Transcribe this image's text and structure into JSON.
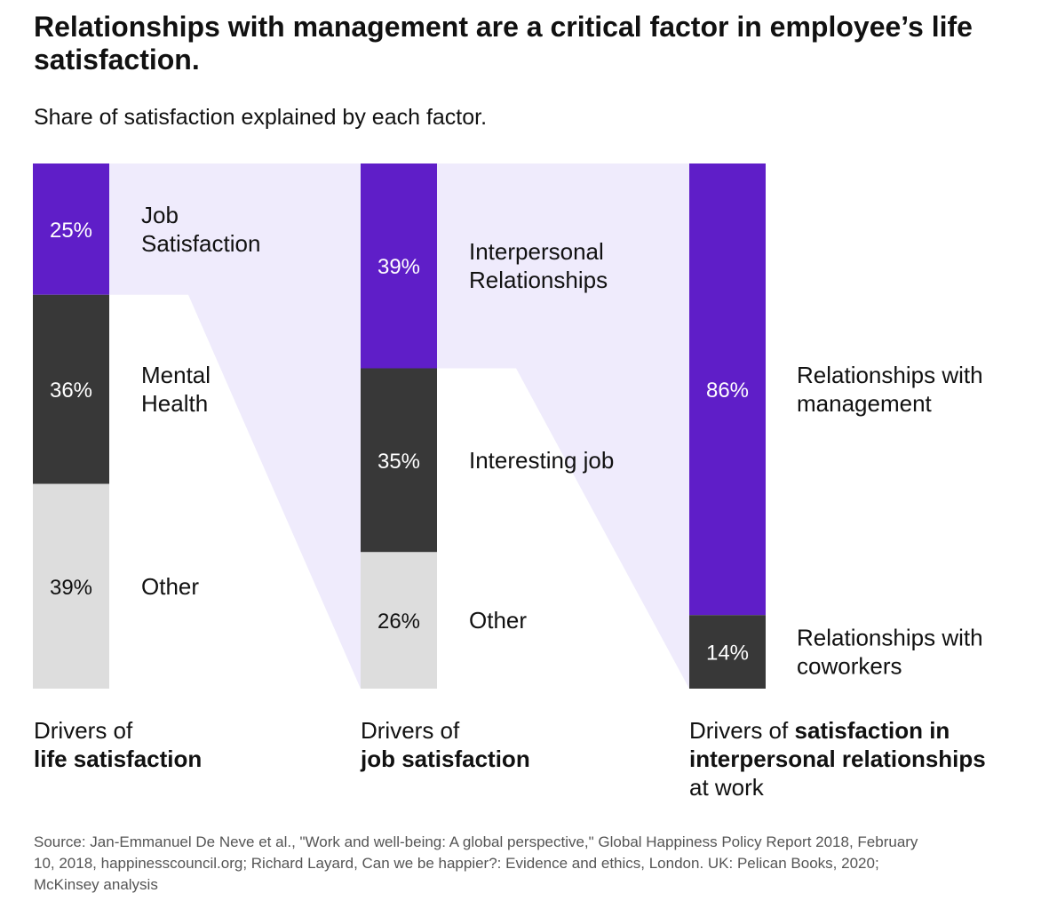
{
  "header": {
    "title": "Relationships with management are a critical factor in employee’s life satisfaction.",
    "subtitle": "Share of satisfaction explained by each factor."
  },
  "colors": {
    "purple": "#5F1EC8",
    "dark": "#383838",
    "light": "#DDDDDD",
    "connector": "#EFEBFC",
    "text_dark": "#111111",
    "source_text": "#555555"
  },
  "chart_data": [
    {
      "type": "bar",
      "stacked": true,
      "categories": [
        "Job Satisfaction",
        "Mental Health",
        "Other"
      ],
      "values": [
        25,
        36,
        39
      ],
      "value_labels": [
        "25%",
        "36%",
        "39%"
      ],
      "caption_normal": "Drivers of",
      "caption_bold": "life satisfaction",
      "caption_tail": ""
    },
    {
      "type": "bar",
      "stacked": true,
      "categories": [
        "Interpersonal Relationships",
        "Interesting job",
        "Other"
      ],
      "values": [
        39,
        35,
        26
      ],
      "value_labels": [
        "39%",
        "35%",
        "26%"
      ],
      "caption_normal": "Drivers of",
      "caption_bold": "job satisfaction",
      "caption_tail": ""
    },
    {
      "type": "bar",
      "stacked": true,
      "categories": [
        "Relationships with management",
        "Relationships with coworkers"
      ],
      "values": [
        86,
        14
      ],
      "value_labels": [
        "86%",
        "14%"
      ],
      "caption_normal": "Drivers of",
      "caption_bold": "satisfaction in interpersonal relationships",
      "caption_tail": "at work"
    }
  ],
  "source": "Source: Jan-Emmanuel De Neve et al., \"Work and well-being: A global perspective,\" Global Happiness Policy Report 2018, February 10, 2018, happinesscouncil.org; Richard Layard, Can we be happier?: Evidence and ethics, London. UK: Pelican Books, 2020; McKinsey analysis"
}
